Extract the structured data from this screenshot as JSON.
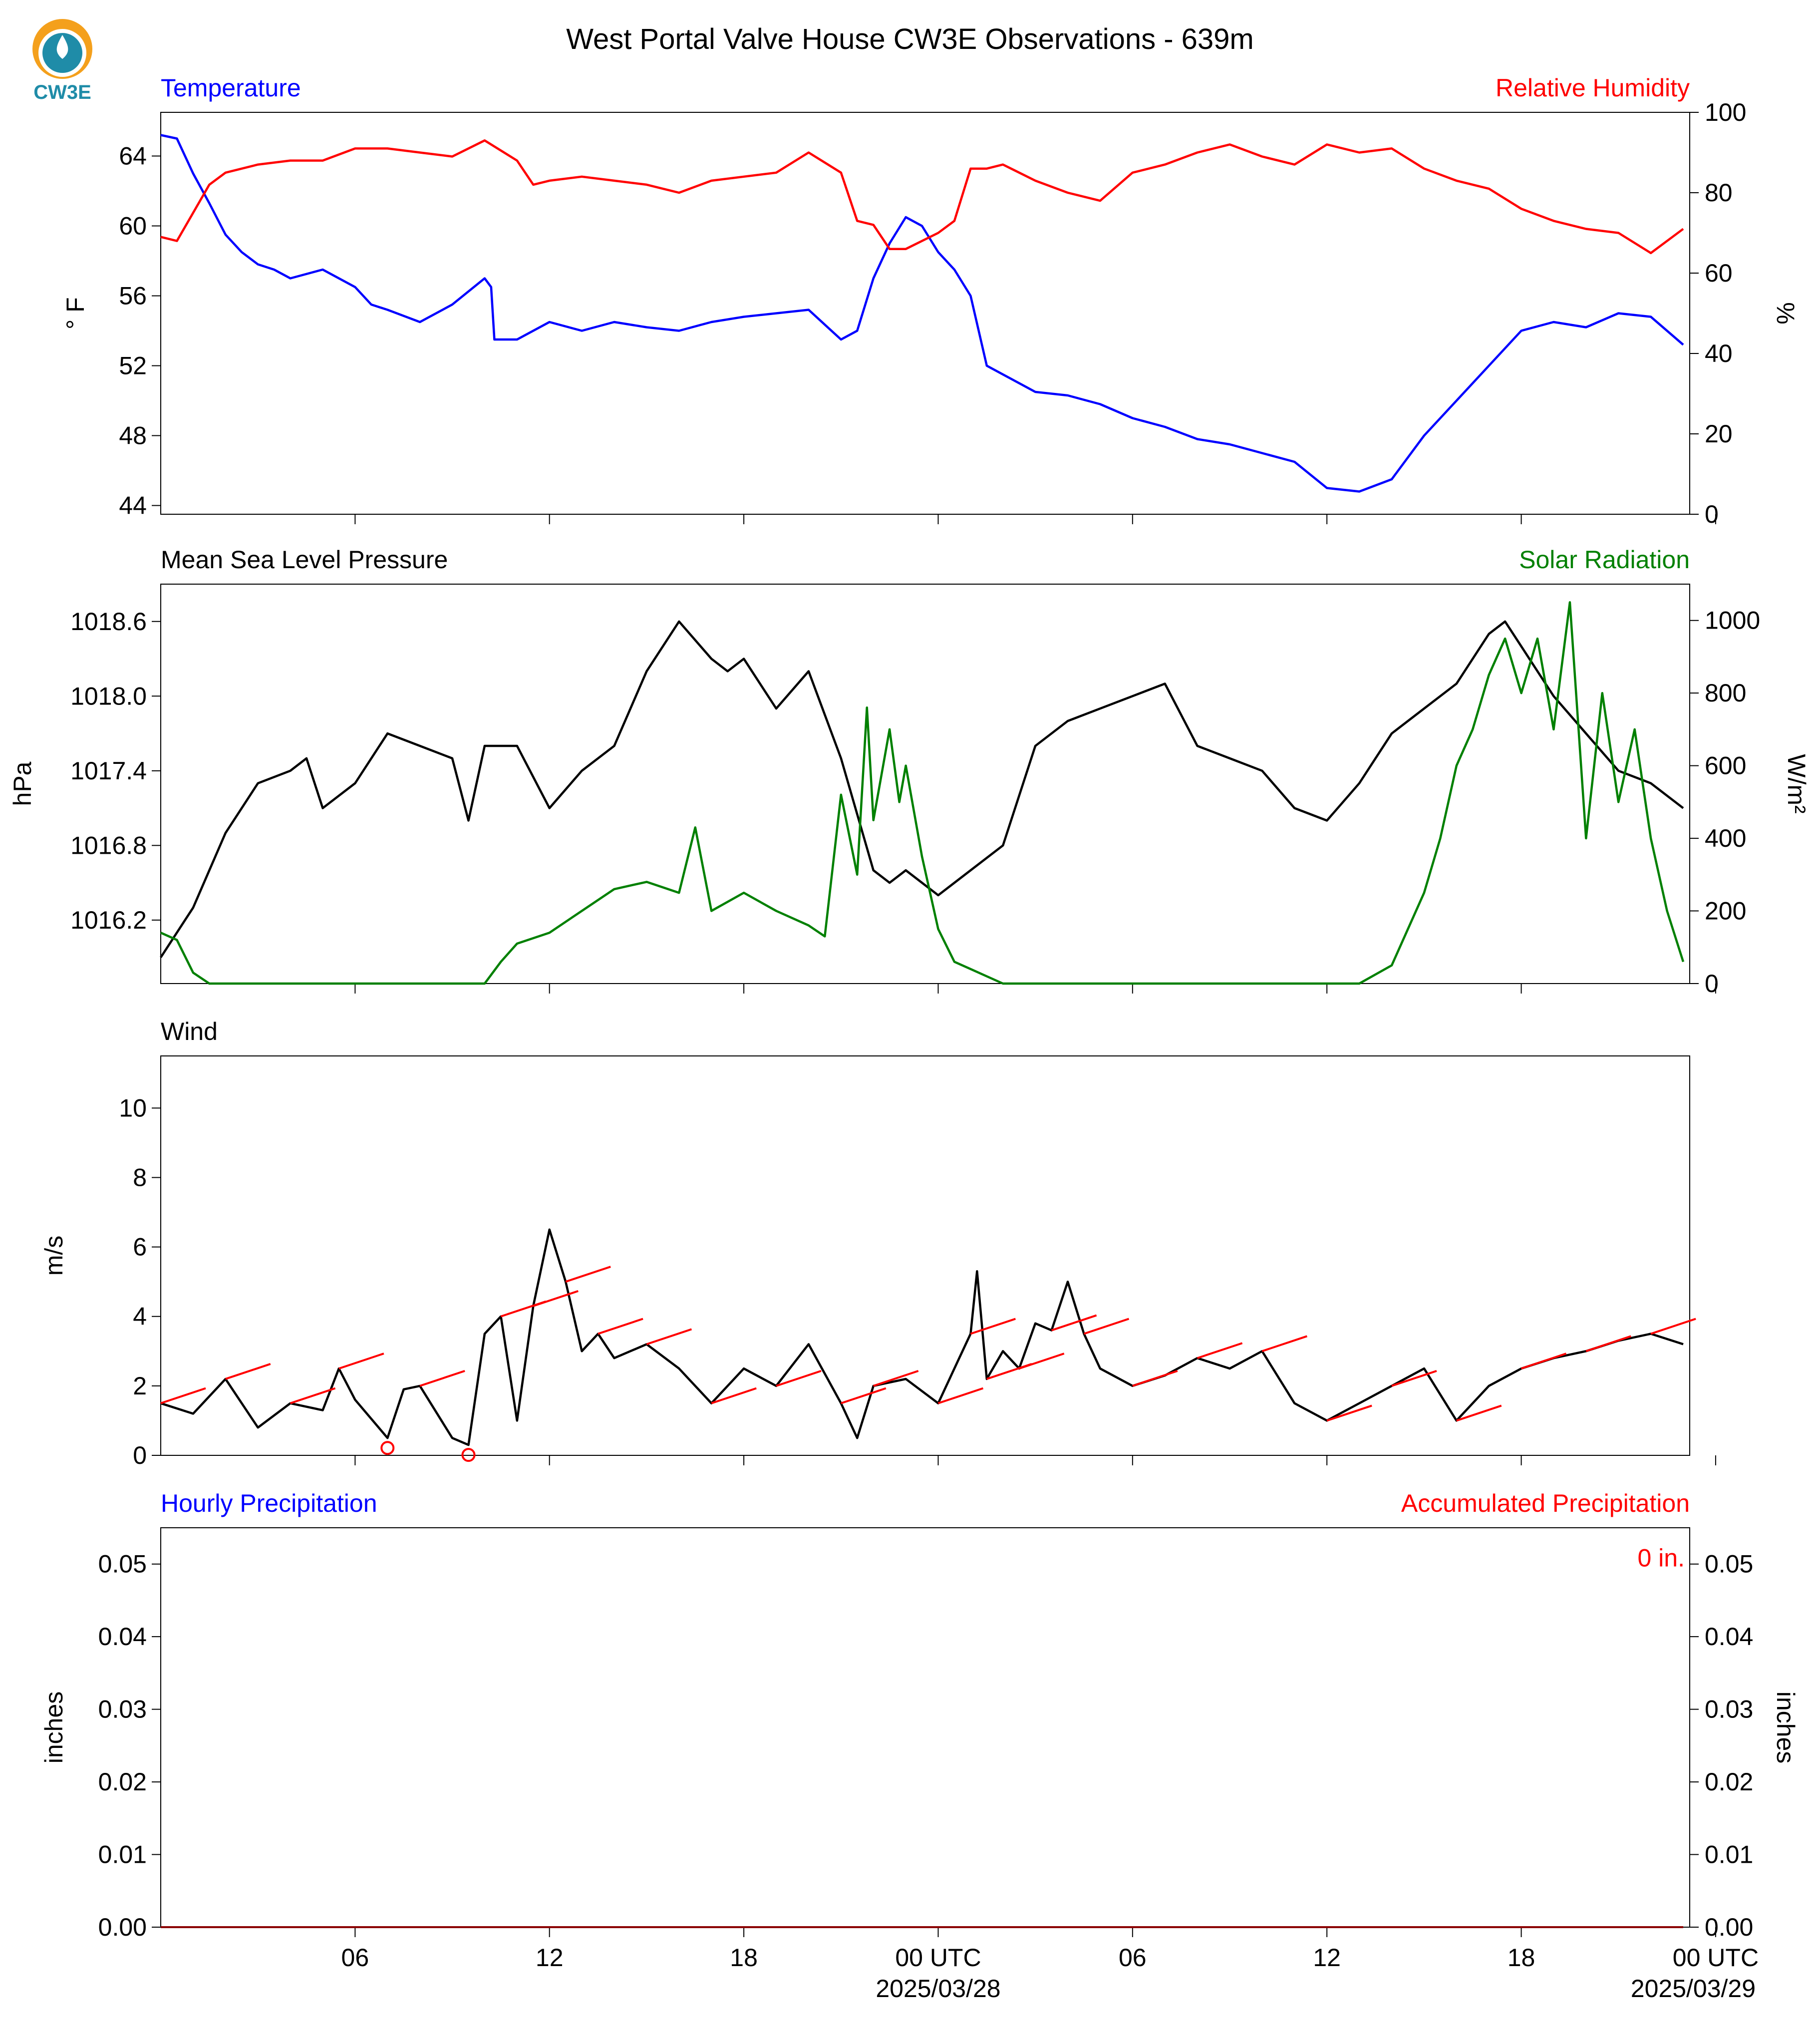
{
  "header": {
    "title": "West Portal Valve House CW3E Observations - 639m",
    "logo_text": "CW3E"
  },
  "colors": {
    "temperature": "#0000ff",
    "humidity": "#ff0000",
    "pressure": "#000000",
    "solar": "#008000",
    "wind": "#000000",
    "wind_barb": "#ff0000",
    "hourly_precip": "#0000ff",
    "accum_precip": "#ff0000",
    "logo_orange": "#f4a01c",
    "logo_teal": "#1f8ca8"
  },
  "time_axis": {
    "tick_labels": [
      "06",
      "12",
      "18",
      "00 UTC",
      "06",
      "12",
      "18",
      "00 UTC"
    ],
    "date_labels": [
      "2025/03/28",
      "2025/03/29"
    ],
    "range_hours": [
      -24,
      23.2
    ],
    "tick_hours": [
      -18,
      -12,
      -6,
      0,
      6,
      12,
      18,
      24
    ]
  },
  "chart_data": [
    {
      "type": "line",
      "title_left": "Temperature",
      "title_right": "Relative Humidity",
      "ylabel_left": "° F",
      "ylabel_right": "%",
      "ylim_left": [
        43.5,
        66.5
      ],
      "ylim_right": [
        0,
        100
      ],
      "yticks_left": [
        44,
        48,
        52,
        56,
        60,
        64
      ],
      "yticks_right": [
        0,
        20,
        40,
        60,
        80,
        100
      ],
      "series": [
        {
          "name": "Temperature",
          "axis": "left",
          "x": [
            -24,
            -23.5,
            -23,
            -22.5,
            -22,
            -21.5,
            -21,
            -20.5,
            -20,
            -19,
            -18,
            -17.5,
            -17,
            -16,
            -15,
            -14,
            -13.8,
            -13.7,
            -13,
            -12,
            -11,
            -10,
            -9,
            -8,
            -7,
            -6,
            -5,
            -4,
            -3,
            -2.5,
            -2,
            -1.5,
            -1,
            -0.5,
            0,
            0.5,
            1,
            1.5,
            2,
            2.5,
            3,
            4,
            5,
            6,
            7,
            8,
            9,
            10,
            11,
            12,
            13,
            14,
            15,
            16,
            17,
            18,
            19,
            20,
            21,
            22,
            23
          ],
          "values": [
            65.2,
            65,
            63,
            61.3,
            59.5,
            58.5,
            57.8,
            57.5,
            57,
            57.5,
            56.5,
            55.5,
            55.2,
            54.5,
            55.5,
            57,
            56.5,
            53.5,
            53.5,
            54.5,
            54,
            54.5,
            54.2,
            54,
            54.5,
            54.8,
            55,
            55.2,
            53.5,
            54,
            57,
            59,
            60.5,
            60,
            58.5,
            57.5,
            56,
            52,
            51.5,
            51,
            50.5,
            50.3,
            49.8,
            49,
            48.5,
            47.8,
            47.5,
            47,
            46.5,
            45,
            44.8,
            45.5,
            48,
            50,
            52,
            54,
            54.5,
            54.2,
            55,
            54.8,
            53.2
          ]
        },
        {
          "name": "Relative Humidity",
          "axis": "right",
          "x": [
            -24,
            -23.5,
            -23,
            -22.5,
            -22,
            -21,
            -20,
            -19,
            -18,
            -17,
            -16,
            -15,
            -14,
            -13,
            -12.5,
            -12,
            -11,
            -10,
            -9,
            -8,
            -7,
            -6,
            -5,
            -4,
            -3,
            -2.5,
            -2,
            -1.5,
            -1,
            -0.5,
            0,
            0.5,
            1,
            1.5,
            2,
            3,
            4,
            5,
            6,
            7,
            8,
            9,
            10,
            11,
            12,
            13,
            14,
            15,
            16,
            17,
            18,
            19,
            20,
            21,
            22,
            23
          ],
          "values": [
            69,
            68,
            75,
            82,
            85,
            87,
            88,
            88,
            91,
            91,
            90,
            89,
            93,
            88,
            82,
            83,
            84,
            83,
            82,
            80,
            83,
            84,
            85,
            90,
            85,
            73,
            72,
            66,
            66,
            68,
            70,
            73,
            86,
            86,
            87,
            83,
            80,
            78,
            85,
            87,
            90,
            92,
            89,
            87,
            92,
            90,
            91,
            86,
            83,
            81,
            76,
            73,
            71,
            70,
            65,
            71
          ]
        }
      ]
    },
    {
      "type": "line",
      "title_left": "Mean Sea Level Pressure",
      "title_right": "Solar Radiation",
      "ylabel_left": "hPa",
      "ylabel_right": "W/m²",
      "ylim_left": [
        1015.69,
        1018.9
      ],
      "ylim_right": [
        0,
        1100
      ],
      "yticks_left": [
        1016.2,
        1016.8,
        1017.4,
        1018.0,
        1018.6
      ],
      "yticks_right": [
        0,
        200,
        400,
        600,
        800,
        1000
      ],
      "series": [
        {
          "name": "Mean Sea Level Pressure",
          "axis": "left",
          "x": [
            -24,
            -23,
            -22,
            -21,
            -20,
            -19.5,
            -19,
            -18,
            -17,
            -16,
            -15,
            -14.5,
            -14,
            -13,
            -12,
            -11,
            -10,
            -9,
            -8,
            -7,
            -6.5,
            -6,
            -5,
            -4,
            -3,
            -2,
            -1.5,
            -1,
            0,
            1,
            2,
            3,
            4,
            5,
            6,
            7,
            8,
            9,
            10,
            11,
            12,
            13,
            14,
            15,
            16,
            17,
            17.5,
            18,
            19,
            20,
            21,
            22,
            23
          ],
          "values": [
            1015.9,
            1016.3,
            1016.9,
            1017.3,
            1017.4,
            1017.5,
            1017.1,
            1017.3,
            1017.7,
            1017.6,
            1017.5,
            1017.0,
            1017.6,
            1017.6,
            1017.1,
            1017.4,
            1017.6,
            1018.2,
            1018.6,
            1018.3,
            1018.2,
            1018.3,
            1017.9,
            1018.2,
            1017.5,
            1016.6,
            1016.5,
            1016.6,
            1016.4,
            1016.6,
            1016.8,
            1017.6,
            1017.8,
            1017.9,
            1018.0,
            1018.1,
            1017.6,
            1017.5,
            1017.4,
            1017.1,
            1017.0,
            1017.3,
            1017.7,
            1017.9,
            1018.1,
            1018.5,
            1018.6,
            1018.4,
            1018.0,
            1017.7,
            1017.4,
            1017.3,
            1017.1
          ]
        },
        {
          "name": "Solar Radiation",
          "axis": "right",
          "x": [
            -24,
            -23.5,
            -23,
            -22.5,
            -22,
            -14,
            -13.5,
            -13,
            -12,
            -11,
            -10,
            -9,
            -8,
            -7.5,
            -7,
            -6,
            -5,
            -4,
            -3.5,
            -3,
            -2.5,
            -2.2,
            -2,
            -1.5,
            -1.2,
            -1,
            -0.5,
            0,
            0.5,
            1,
            1.5,
            2,
            3,
            10,
            13,
            14,
            15,
            15.5,
            16,
            16.5,
            17,
            17.5,
            18,
            18.5,
            19,
            19.5,
            20,
            20.5,
            21,
            21.5,
            22,
            22.5,
            23
          ],
          "values": [
            140,
            120,
            30,
            0,
            0,
            0,
            60,
            110,
            140,
            200,
            260,
            280,
            250,
            430,
            200,
            250,
            200,
            160,
            130,
            520,
            300,
            760,
            450,
            700,
            500,
            600,
            350,
            150,
            60,
            40,
            20,
            0,
            0,
            0,
            0,
            50,
            250,
            400,
            600,
            700,
            850,
            950,
            800,
            950,
            700,
            1050,
            400,
            800,
            500,
            700,
            400,
            200,
            60
          ]
        }
      ]
    },
    {
      "type": "line",
      "title_left": "Wind",
      "ylabel_left": "m/s",
      "ylim_left": [
        0,
        11.5
      ],
      "yticks_left": [
        0,
        2,
        4,
        6,
        8,
        10
      ],
      "series": [
        {
          "name": "Wind",
          "axis": "left",
          "x": [
            -24,
            -23,
            -22,
            -21,
            -20,
            -19,
            -18.5,
            -18,
            -17,
            -16.5,
            -16,
            -15,
            -14.5,
            -14,
            -13.5,
            -13,
            -12.5,
            -12,
            -11.5,
            -11,
            -10.5,
            -10,
            -9,
            -8,
            -7,
            -6,
            -5,
            -4,
            -3,
            -2.5,
            -2,
            -1,
            0,
            0.5,
            1,
            1.2,
            1.5,
            2,
            2.5,
            3,
            3.5,
            4,
            4.5,
            5,
            6,
            7,
            8,
            9,
            10,
            11,
            12,
            13,
            14,
            15,
            16,
            17,
            18,
            19,
            20,
            21,
            22,
            23
          ],
          "values": [
            1.5,
            1.2,
            2.2,
            0.8,
            1.5,
            1.3,
            2.5,
            1.6,
            0.5,
            1.9,
            2.0,
            0.5,
            0.3,
            3.5,
            4.0,
            1.0,
            4.3,
            6.5,
            5.0,
            3.0,
            3.5,
            2.8,
            3.2,
            2.5,
            1.5,
            2.5,
            2.0,
            3.2,
            1.5,
            0.5,
            2.0,
            2.2,
            1.5,
            2.5,
            3.5,
            5.3,
            2.2,
            3.0,
            2.5,
            3.8,
            3.6,
            5.0,
            3.5,
            2.5,
            2.0,
            2.3,
            2.8,
            2.5,
            3.0,
            1.5,
            1.0,
            1.5,
            2.0,
            2.5,
            1.0,
            2.0,
            2.5,
            2.8,
            3.0,
            3.3,
            3.5,
            3.2
          ]
        }
      ]
    },
    {
      "type": "line",
      "title_left": "Hourly Precipitation",
      "title_right": "Accumulated Precipitation",
      "ylabel_left": "inches",
      "ylabel_right": "inches",
      "ylim_left": [
        0,
        0.055
      ],
      "ylim_right": [
        0,
        0.055
      ],
      "yticks_left": [
        0.0,
        0.01,
        0.02,
        0.03,
        0.04,
        0.05
      ],
      "yticks_right": [
        0.0,
        0.01,
        0.02,
        0.03,
        0.04,
        0.05
      ],
      "annotation": "0 in.",
      "series": [
        {
          "name": "Hourly Precipitation",
          "axis": "left",
          "x": [
            -24,
            23
          ],
          "values": [
            0,
            0
          ]
        },
        {
          "name": "Accumulated Precipitation",
          "axis": "right",
          "x": [
            -24,
            23
          ],
          "values": [
            0,
            0
          ]
        }
      ]
    }
  ]
}
